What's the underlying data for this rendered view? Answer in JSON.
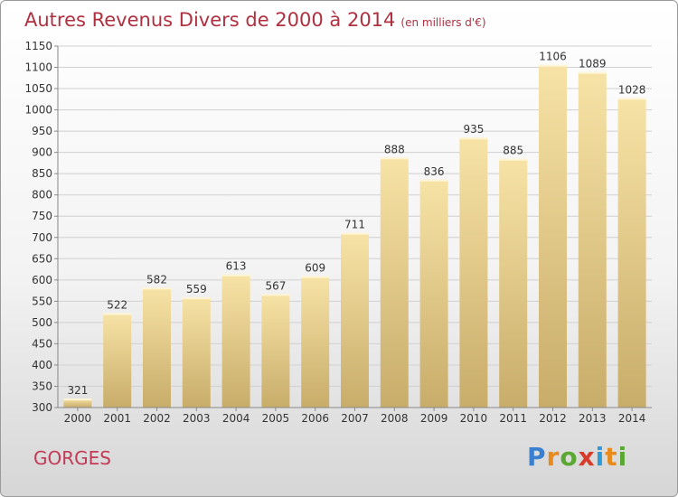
{
  "header": {
    "title": "Autres Revenus Divers de 2000 à 2014",
    "subtitle": "(en milliers d'€)"
  },
  "footer": {
    "city": "GORGES"
  },
  "brand": {
    "letters": [
      "P",
      "r",
      "o",
      "x",
      "i",
      "t",
      "i"
    ],
    "colors": [
      "#3a7fd0",
      "#e98a1c",
      "#5aa832",
      "#d93b2b",
      "#2f9ad6",
      "#e98a1c",
      "#5aa832"
    ]
  },
  "colors": {
    "bar_light": "#f7e3a6",
    "bar_dark": "#c8ac6a",
    "title": "#b03040",
    "city": "#c23a55"
  },
  "chart_data": {
    "type": "bar",
    "title": "Autres Revenus Divers de 2000 à 2014",
    "xlabel": "",
    "ylabel": "",
    "categories": [
      "2000",
      "2001",
      "2002",
      "2003",
      "2004",
      "2005",
      "2006",
      "2007",
      "2008",
      "2009",
      "2010",
      "2011",
      "2012",
      "2013",
      "2014"
    ],
    "values": [
      321,
      522,
      582,
      559,
      613,
      567,
      609,
      711,
      888,
      836,
      935,
      885,
      1106,
      1089,
      1028
    ],
    "ylim": [
      300,
      1150
    ],
    "yticks": [
      300,
      350,
      400,
      450,
      500,
      550,
      600,
      650,
      700,
      750,
      800,
      850,
      900,
      950,
      1000,
      1050,
      1100,
      1150
    ],
    "grid": true,
    "data_labels": true
  }
}
